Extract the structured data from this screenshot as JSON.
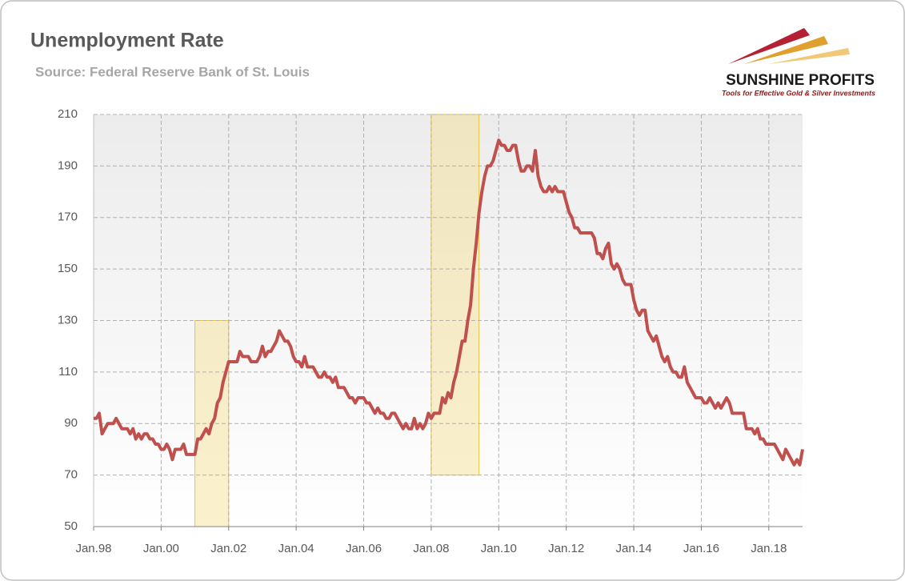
{
  "chart_data": {
    "type": "line",
    "title": "Unemployment Rate",
    "subtitle": "Source: Federal Reserve Bank of St. Louis",
    "logo": {
      "name": "SUNSHINE PROFITS",
      "tagline": "Tools for Effective Gold & Silver Investments"
    },
    "color": "#c0504d",
    "x": [
      "1998-01",
      "1998-02",
      "1998-03",
      "1998-04",
      "1998-05",
      "1998-06",
      "1998-07",
      "1998-08",
      "1998-09",
      "1998-10",
      "1998-11",
      "1998-12",
      "1999-01",
      "1999-02",
      "1999-03",
      "1999-04",
      "1999-05",
      "1999-06",
      "1999-07",
      "1999-08",
      "1999-09",
      "1999-10",
      "1999-11",
      "1999-12",
      "2000-01",
      "2000-02",
      "2000-03",
      "2000-04",
      "2000-05",
      "2000-06",
      "2000-07",
      "2000-08",
      "2000-09",
      "2000-10",
      "2000-11",
      "2000-12",
      "2001-01",
      "2001-02",
      "2001-03",
      "2001-04",
      "2001-05",
      "2001-06",
      "2001-07",
      "2001-08",
      "2001-09",
      "2001-10",
      "2001-11",
      "2001-12",
      "2002-01",
      "2002-02",
      "2002-03",
      "2002-04",
      "2002-05",
      "2002-06",
      "2002-07",
      "2002-08",
      "2002-09",
      "2002-10",
      "2002-11",
      "2002-12",
      "2003-01",
      "2003-02",
      "2003-03",
      "2003-04",
      "2003-05",
      "2003-06",
      "2003-07",
      "2003-08",
      "2003-09",
      "2003-10",
      "2003-11",
      "2003-12",
      "2004-01",
      "2004-02",
      "2004-03",
      "2004-04",
      "2004-05",
      "2004-06",
      "2004-07",
      "2004-08",
      "2004-09",
      "2004-10",
      "2004-11",
      "2004-12",
      "2005-01",
      "2005-02",
      "2005-03",
      "2005-04",
      "2005-05",
      "2005-06",
      "2005-07",
      "2005-08",
      "2005-09",
      "2005-10",
      "2005-11",
      "2005-12",
      "2006-01",
      "2006-02",
      "2006-03",
      "2006-04",
      "2006-05",
      "2006-06",
      "2006-07",
      "2006-08",
      "2006-09",
      "2006-10",
      "2006-11",
      "2006-12",
      "2007-01",
      "2007-02",
      "2007-03",
      "2007-04",
      "2007-05",
      "2007-06",
      "2007-07",
      "2007-08",
      "2007-09",
      "2007-10",
      "2007-11",
      "2007-12",
      "2008-01",
      "2008-02",
      "2008-03",
      "2008-04",
      "2008-05",
      "2008-06",
      "2008-07",
      "2008-08",
      "2008-09",
      "2008-10",
      "2008-11",
      "2008-12",
      "2009-01",
      "2009-02",
      "2009-03",
      "2009-04",
      "2009-05",
      "2009-06",
      "2009-07",
      "2009-08",
      "2009-09",
      "2009-10",
      "2009-11",
      "2009-12",
      "2010-01",
      "2010-02",
      "2010-03",
      "2010-04",
      "2010-05",
      "2010-06",
      "2010-07",
      "2010-08",
      "2010-09",
      "2010-10",
      "2010-11",
      "2010-12",
      "2011-01",
      "2011-02",
      "2011-03",
      "2011-04",
      "2011-05",
      "2011-06",
      "2011-07",
      "2011-08",
      "2011-09",
      "2011-10",
      "2011-11",
      "2011-12",
      "2012-01",
      "2012-02",
      "2012-03",
      "2012-04",
      "2012-05",
      "2012-06",
      "2012-07",
      "2012-08",
      "2012-09",
      "2012-10",
      "2012-11",
      "2012-12",
      "2013-01",
      "2013-02",
      "2013-03",
      "2013-04",
      "2013-05",
      "2013-06",
      "2013-07",
      "2013-08",
      "2013-09",
      "2013-10",
      "2013-11",
      "2013-12",
      "2014-01",
      "2014-02",
      "2014-03",
      "2014-04",
      "2014-05",
      "2014-06",
      "2014-07",
      "2014-08",
      "2014-09",
      "2014-10",
      "2014-11",
      "2014-12",
      "2015-01",
      "2015-02",
      "2015-03",
      "2015-04",
      "2015-05",
      "2015-06",
      "2015-07",
      "2015-08",
      "2015-09",
      "2015-10",
      "2015-11",
      "2015-12",
      "2016-01",
      "2016-02",
      "2016-03",
      "2016-04",
      "2016-05",
      "2016-06",
      "2016-07",
      "2016-08",
      "2016-09",
      "2016-10",
      "2016-11",
      "2016-12",
      "2017-01",
      "2017-02",
      "2017-03",
      "2017-04",
      "2017-05",
      "2017-06",
      "2017-07",
      "2017-08",
      "2017-09",
      "2017-10",
      "2017-11",
      "2017-12",
      "2018-01",
      "2018-02",
      "2018-03",
      "2018-04",
      "2018-05",
      "2018-06",
      "2018-07",
      "2018-08",
      "2018-09",
      "2018-10",
      "2018-11",
      "2018-12",
      "2019-01"
    ],
    "values": [
      92,
      92,
      94,
      86,
      88,
      90,
      90,
      90,
      92,
      90,
      88,
      88,
      88,
      86,
      88,
      84,
      86,
      84,
      86,
      86,
      84,
      84,
      82,
      82,
      80,
      80,
      82,
      80,
      76,
      80,
      80,
      80,
      82,
      78,
      78,
      78,
      78,
      84,
      84,
      86,
      88,
      86,
      90,
      92,
      98,
      100,
      106,
      110,
      114,
      114,
      114,
      114,
      118,
      116,
      116,
      116,
      114,
      114,
      114,
      116,
      120,
      116,
      118,
      118,
      120,
      122,
      126,
      124,
      122,
      122,
      120,
      116,
      114,
      114,
      112,
      116,
      112,
      112,
      112,
      110,
      108,
      108,
      110,
      108,
      108,
      106,
      108,
      104,
      104,
      104,
      102,
      100,
      100,
      98,
      100,
      100,
      100,
      98,
      98,
      96,
      94,
      96,
      94,
      94,
      92,
      92,
      94,
      94,
      92,
      90,
      88,
      90,
      88,
      88,
      92,
      88,
      90,
      88,
      90,
      94,
      92,
      94,
      94,
      94,
      100,
      98,
      102,
      100,
      106,
      110,
      116,
      122,
      122,
      130,
      136,
      150,
      160,
      172,
      180,
      186,
      190,
      190,
      192,
      196,
      200,
      198,
      198,
      196,
      196,
      198,
      198,
      192,
      188,
      188,
      190,
      190,
      188,
      196,
      186,
      182,
      180,
      180,
      182,
      180,
      182,
      180,
      180,
      180,
      176,
      172,
      170,
      166,
      166,
      164,
      164,
      164,
      164,
      164,
      162,
      156,
      156,
      154,
      158,
      160,
      152,
      150,
      152,
      150,
      146,
      144,
      144,
      144,
      138,
      134,
      132,
      134,
      134,
      126,
      124,
      122,
      124,
      120,
      116,
      114,
      116,
      112,
      110,
      110,
      108,
      108,
      112,
      106,
      104,
      102,
      100,
      100,
      100,
      98,
      98,
      100,
      98,
      96,
      98,
      96,
      98,
      100,
      98,
      94,
      94,
      94,
      94,
      94,
      88,
      88,
      88,
      86,
      88,
      84,
      84,
      82,
      82,
      82,
      82,
      80,
      78,
      76,
      80,
      78,
      76,
      74,
      76,
      74,
      80
    ],
    "shaded_regions": [
      {
        "x": [
          "2001-01",
          "2002-01"
        ],
        "y": [
          50,
          130
        ]
      },
      {
        "x": [
          "2008-01",
          "2009-06"
        ],
        "y": [
          70,
          210
        ]
      }
    ],
    "xlim": [
      "1998-01",
      "2019-01"
    ],
    "xticks": [
      {
        "value": "1998-01",
        "label": "Jan.98"
      },
      {
        "value": "2000-01",
        "label": "Jan.00"
      },
      {
        "value": "2002-01",
        "label": "Jan.02"
      },
      {
        "value": "2004-01",
        "label": "Jan.04"
      },
      {
        "value": "2006-01",
        "label": "Jan.06"
      },
      {
        "value": "2008-01",
        "label": "Jan.08"
      },
      {
        "value": "2010-01",
        "label": "Jan.10"
      },
      {
        "value": "2012-01",
        "label": "Jan.12"
      },
      {
        "value": "2014-01",
        "label": "Jan.14"
      },
      {
        "value": "2016-01",
        "label": "Jan.16"
      },
      {
        "value": "2018-01",
        "label": "Jan.18"
      }
    ],
    "ylim": [
      50,
      210
    ],
    "yticks": [
      50,
      70,
      90,
      110,
      130,
      150,
      170,
      190,
      210
    ],
    "grid": true
  }
}
